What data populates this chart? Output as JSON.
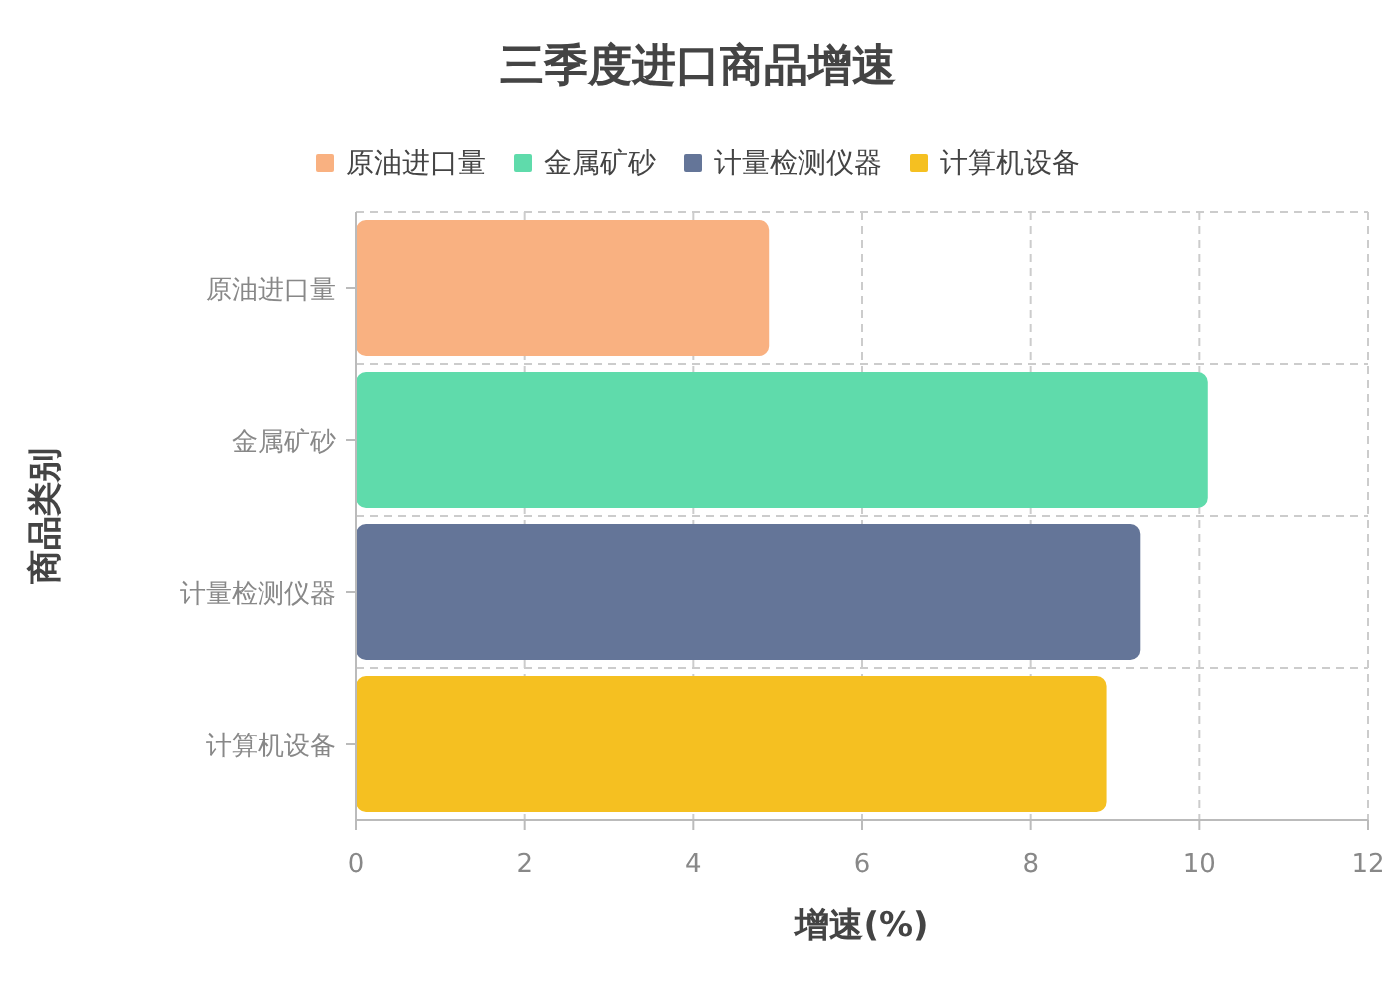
{
  "chart_data": {
    "type": "bar",
    "orientation": "horizontal",
    "title": "三季度进口商品增速",
    "xlabel": "增速(%)",
    "ylabel": "商品类别",
    "categories": [
      "原油进口量",
      "金属矿砂",
      "计量检测仪器",
      "计算机设备"
    ],
    "series": [
      {
        "name": "原油进口量",
        "color": "#f9b181",
        "values": [
          4.9,
          null,
          null,
          null
        ]
      },
      {
        "name": "金属矿砂",
        "color": "#5fdbab",
        "values": [
          null,
          10.1,
          null,
          null
        ]
      },
      {
        "name": "计量检测仪器",
        "color": "#647598",
        "values": [
          null,
          null,
          9.3,
          null
        ]
      },
      {
        "name": "计算机设备",
        "color": "#f5c021",
        "values": [
          null,
          null,
          null,
          8.9
        ]
      }
    ],
    "xlim": [
      0,
      12
    ],
    "xticks": [
      0,
      2,
      4,
      6,
      8,
      10,
      12
    ],
    "grid": true,
    "legend": "top"
  }
}
